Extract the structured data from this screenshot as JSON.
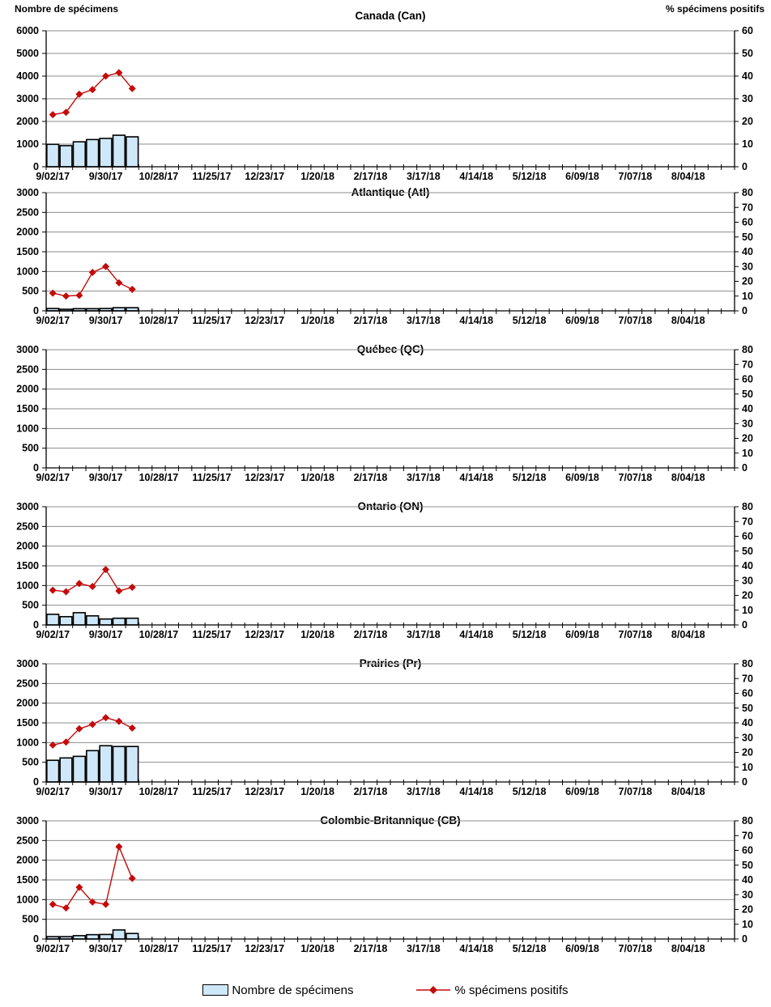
{
  "page": {
    "left_axis_header": "Nombre de spécimens",
    "right_axis_header": "% spécimens positifs"
  },
  "legend": {
    "bar_label": "Nombre de spécimens",
    "line_label": "% spécimens positifs"
  },
  "colors": {
    "bar_fill": "#CFE8F9",
    "bar_border": "#000000",
    "line": "#C40A0A",
    "grid": "#8C8C8C",
    "axis": "#000000",
    "text": "#000000"
  },
  "x_axis": {
    "tick_labels": [
      "9/02/17",
      "9/30/17",
      "10/28/17",
      "11/25/17",
      "12/23/17",
      "1/20/18",
      "2/17/18",
      "3/17/18",
      "4/14/18",
      "5/12/18",
      "6/09/18",
      "7/07/18",
      "8/04/18"
    ],
    "weeks_total": 52,
    "label_every_weeks": 4
  },
  "chart_data": [
    {
      "type": "bar",
      "title": "Canada (Can)",
      "left_axis": {
        "label": "Nombre de spécimens",
        "min": 0,
        "max": 6000,
        "step": 1000
      },
      "right_axis": {
        "label": "% spécimens positifs",
        "min": 0,
        "max": 60,
        "step": 10
      },
      "series": [
        {
          "name": "Nombre de spécimens",
          "type": "bar",
          "axis": "left",
          "values": [
            990,
            930,
            1100,
            1200,
            1250,
            1390,
            1320
          ]
        },
        {
          "name": "% spécimens positifs",
          "type": "line",
          "axis": "right",
          "values": [
            23,
            24,
            32,
            34,
            40,
            41.5,
            34.5
          ]
        }
      ]
    },
    {
      "type": "bar",
      "title": "Atlantique (Atl)",
      "left_axis": {
        "label": "Nombre de spécimens",
        "min": 0,
        "max": 3000,
        "step": 500
      },
      "right_axis": {
        "label": "% spécimens positifs",
        "min": 0,
        "max": 80,
        "step": 10
      },
      "series": [
        {
          "name": "Nombre de spécimens",
          "type": "bar",
          "axis": "left",
          "values": [
            60,
            40,
            55,
            55,
            60,
            80,
            80
          ]
        },
        {
          "name": "% spécimens positifs",
          "type": "line",
          "axis": "right",
          "values": [
            12,
            10,
            10.5,
            26,
            30,
            19,
            14.5
          ]
        }
      ]
    },
    {
      "type": "bar",
      "title": "Québec (QC)",
      "left_axis": {
        "label": "Nombre de spécimens",
        "min": 0,
        "max": 3000,
        "step": 500
      },
      "right_axis": {
        "label": "% spécimens positifs",
        "min": 0,
        "max": 80,
        "step": 10
      },
      "series": [
        {
          "name": "Nombre de spécimens",
          "type": "bar",
          "axis": "left",
          "values": []
        },
        {
          "name": "% spécimens positifs",
          "type": "line",
          "axis": "right",
          "values": []
        }
      ]
    },
    {
      "type": "bar",
      "title": "Ontario (ON)",
      "left_axis": {
        "label": "Nombre de spécimens",
        "min": 0,
        "max": 3000,
        "step": 500
      },
      "right_axis": {
        "label": "% spécimens positifs",
        "min": 0,
        "max": 80,
        "step": 10
      },
      "series": [
        {
          "name": "Nombre de spécimens",
          "type": "bar",
          "axis": "left",
          "values": [
            270,
            210,
            310,
            230,
            150,
            170,
            170
          ]
        },
        {
          "name": "% spécimens positifs",
          "type": "line",
          "axis": "right",
          "values": [
            23.5,
            22.5,
            28,
            26,
            37.5,
            23,
            25.5
          ]
        }
      ]
    },
    {
      "type": "bar",
      "title": "Prairies (Pr)",
      "left_axis": {
        "label": "Nombre de spécimens",
        "min": 0,
        "max": 3000,
        "step": 500
      },
      "right_axis": {
        "label": "% spécimens positifs",
        "min": 0,
        "max": 80,
        "step": 10
      },
      "series": [
        {
          "name": "Nombre de spécimens",
          "type": "bar",
          "axis": "left",
          "values": [
            550,
            610,
            650,
            795,
            920,
            900,
            900
          ]
        },
        {
          "name": "% spécimens positifs",
          "type": "line",
          "axis": "right",
          "values": [
            25,
            27,
            36,
            39,
            43.5,
            41,
            36.5
          ]
        }
      ]
    },
    {
      "type": "bar",
      "title": "Colombie-Britannique (CB)",
      "left_axis": {
        "label": "Nombre de spécimens",
        "min": 0,
        "max": 3000,
        "step": 500
      },
      "right_axis": {
        "label": "% spécimens positifs",
        "min": 0,
        "max": 80,
        "step": 10
      },
      "series": [
        {
          "name": "Nombre de spécimens",
          "type": "bar",
          "axis": "left",
          "values": [
            60,
            60,
            85,
            110,
            115,
            230,
            140
          ]
        },
        {
          "name": "% spécimens positifs",
          "type": "line",
          "axis": "right",
          "values": [
            23.5,
            21,
            35,
            25,
            23.5,
            62.5,
            41
          ]
        }
      ]
    }
  ]
}
